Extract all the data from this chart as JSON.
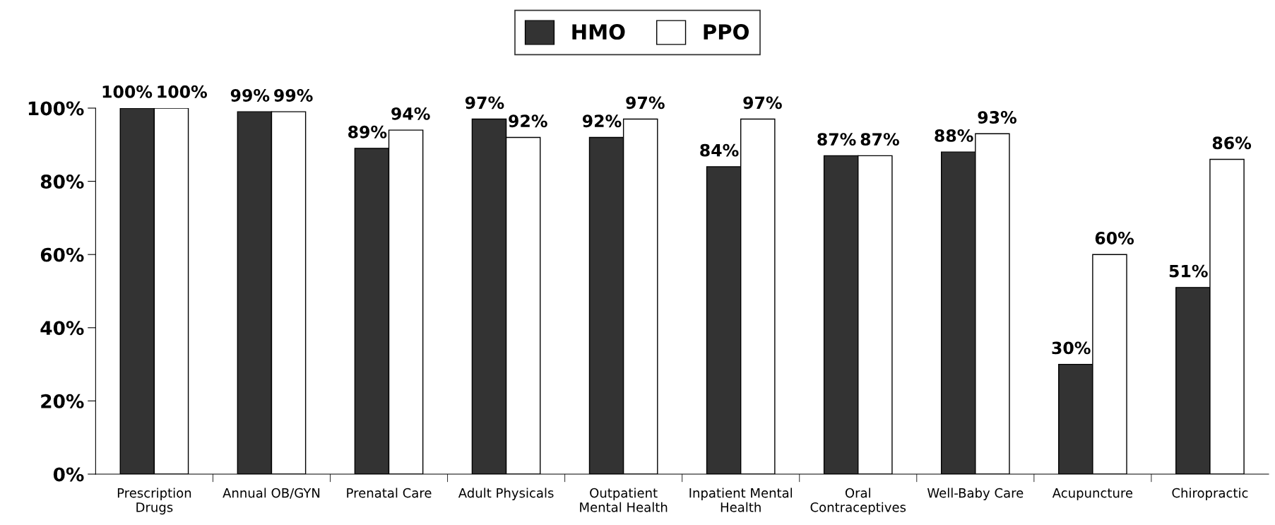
{
  "chart_data": {
    "type": "bar",
    "categories": [
      "Prescription\nDrugs",
      "Annual OB/GYN",
      "Prenatal Care",
      "Adult Physicals",
      "Outpatient\nMental Health",
      "Inpatient Mental\nHealth",
      "Oral\nContraceptives",
      "Well-Baby Care",
      "Acupuncture",
      "Chiropractic"
    ],
    "series": [
      {
        "name": "HMO",
        "color": "#333333",
        "values": [
          100,
          99,
          89,
          97,
          92,
          84,
          87,
          88,
          30,
          51
        ],
        "value_labels": [
          "100%",
          "99%",
          "89%",
          "97%",
          "92%",
          "84%",
          "87%",
          "88%",
          "30%",
          "51%"
        ]
      },
      {
        "name": "PPO",
        "color": "#ffffff",
        "values": [
          100,
          99,
          94,
          92,
          97,
          97,
          87,
          93,
          60,
          86
        ],
        "value_labels": [
          "100%",
          "99%",
          "94%",
          "92%",
          "97%",
          "97%",
          "87%",
          "93%",
          "60%",
          "86%"
        ]
      }
    ],
    "ylim": [
      0,
      100
    ],
    "yticks": [
      {
        "value": 0,
        "label": "0%"
      },
      {
        "value": 20,
        "label": "20%"
      },
      {
        "value": 40,
        "label": "40%"
      },
      {
        "value": 60,
        "label": "60%"
      },
      {
        "value": 80,
        "label": "80%"
      },
      {
        "value": 100,
        "label": "100%"
      }
    ],
    "legend": "top",
    "grid": false
  }
}
